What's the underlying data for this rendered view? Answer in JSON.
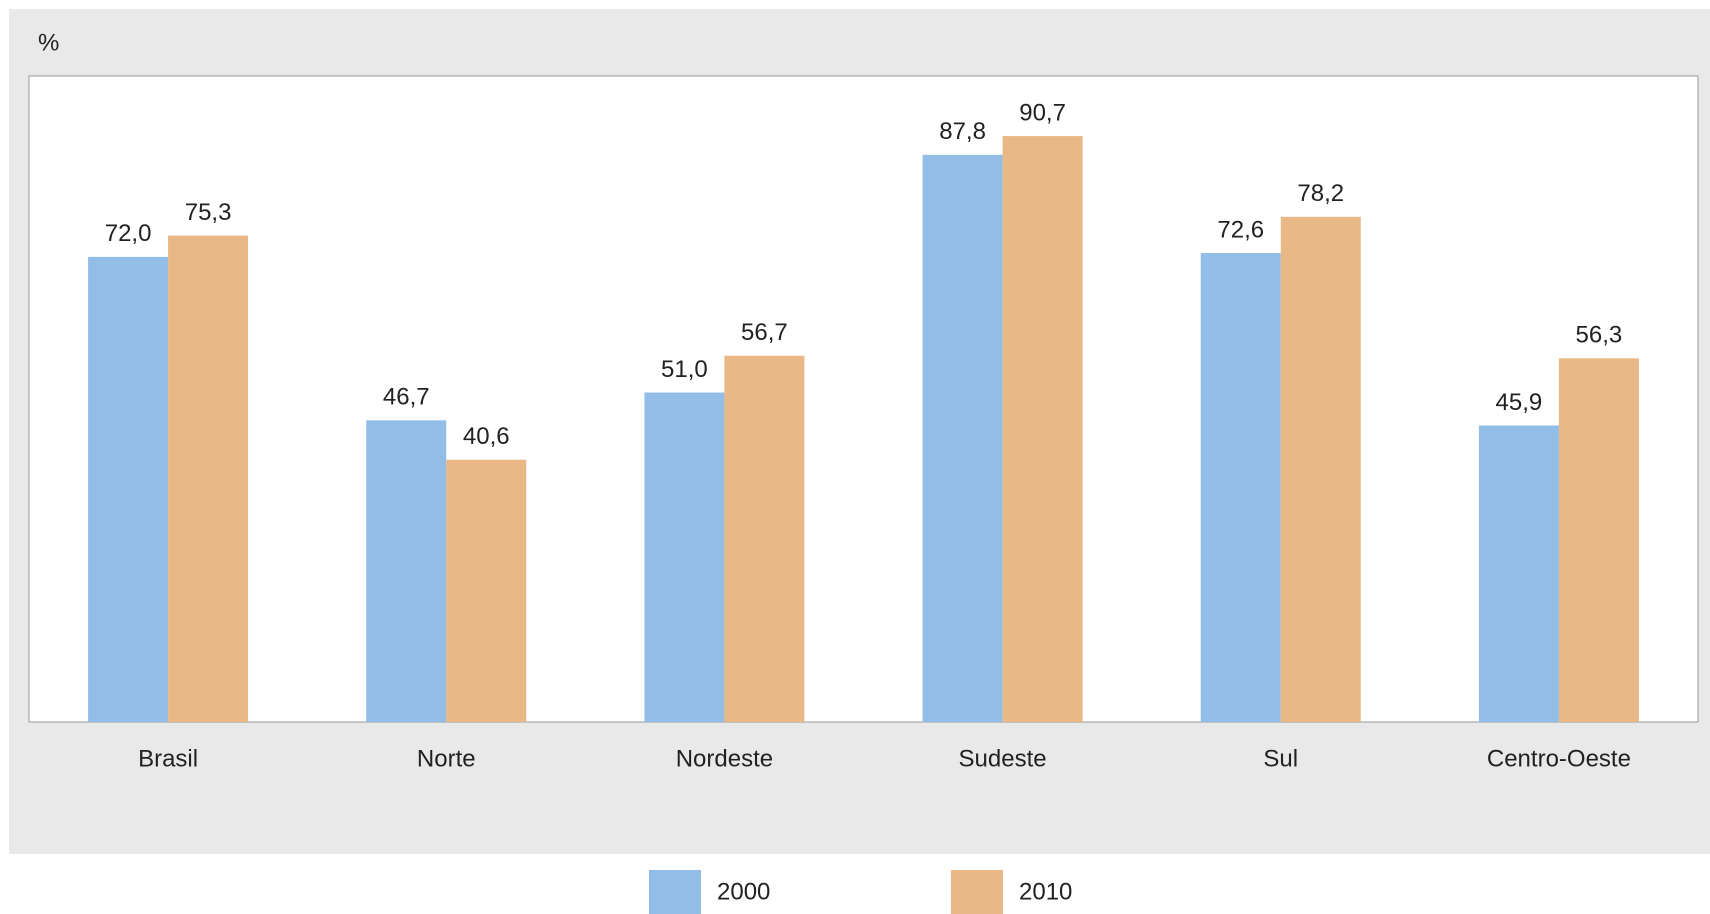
{
  "chart_data": {
    "type": "bar",
    "y_label": "%",
    "categories": [
      "Brasil",
      "Norte",
      "Nordeste",
      "Sudeste",
      "Sul",
      "Centro-Oeste"
    ],
    "series": [
      {
        "name": "2000",
        "color": "#92bde6",
        "values": [
          72.0,
          46.7,
          51.0,
          87.8,
          72.6,
          45.9
        ],
        "value_labels": [
          "72,0",
          "46,7",
          "51,0",
          "87,8",
          "72,6",
          "45,9"
        ]
      },
      {
        "name": "2010",
        "color": "#e8b986",
        "values": [
          75.3,
          40.6,
          56.7,
          90.7,
          78.2,
          56.3
        ],
        "value_labels": [
          "75,3",
          "40,6",
          "56,7",
          "90,7",
          "78,2",
          "56,3"
        ]
      }
    ],
    "ylim": [
      0,
      100
    ],
    "legend": "bottom"
  }
}
